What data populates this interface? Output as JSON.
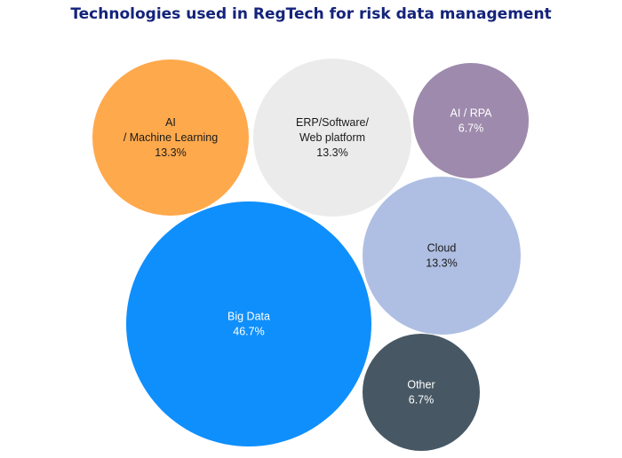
{
  "chart_data": {
    "type": "bubble",
    "title": "Technologies used in RegTech for risk data management",
    "items": [
      {
        "label_lines": [
          "AI",
          "/ Machine Learning"
        ],
        "value_label": "13.3%",
        "value": 13.3,
        "color": "#ffa94d",
        "text_color": "#1a1a1a"
      },
      {
        "label_lines": [
          "ERP/Software/",
          "Web platform"
        ],
        "value_label": "13.3%",
        "value": 13.3,
        "color": "#ebebeb",
        "text_color": "#1a1a1a"
      },
      {
        "label_lines": [
          "AI / RPA"
        ],
        "value_label": "6.7%",
        "value": 6.7,
        "color": "#9e8aac",
        "text_color": "#ffffff"
      },
      {
        "label_lines": [
          "Cloud"
        ],
        "value_label": "13.3%",
        "value": 13.3,
        "color": "#afbfe3",
        "text_color": "#1a1a1a"
      },
      {
        "label_lines": [
          "Big Data"
        ],
        "value_label": "46.7%",
        "value": 46.7,
        "color": "#0f8ffc",
        "text_color": "#ffffff"
      },
      {
        "label_lines": [
          "Other"
        ],
        "value_label": "6.7%",
        "value": 6.7,
        "color": "#475864",
        "text_color": "#ffffff"
      }
    ]
  }
}
